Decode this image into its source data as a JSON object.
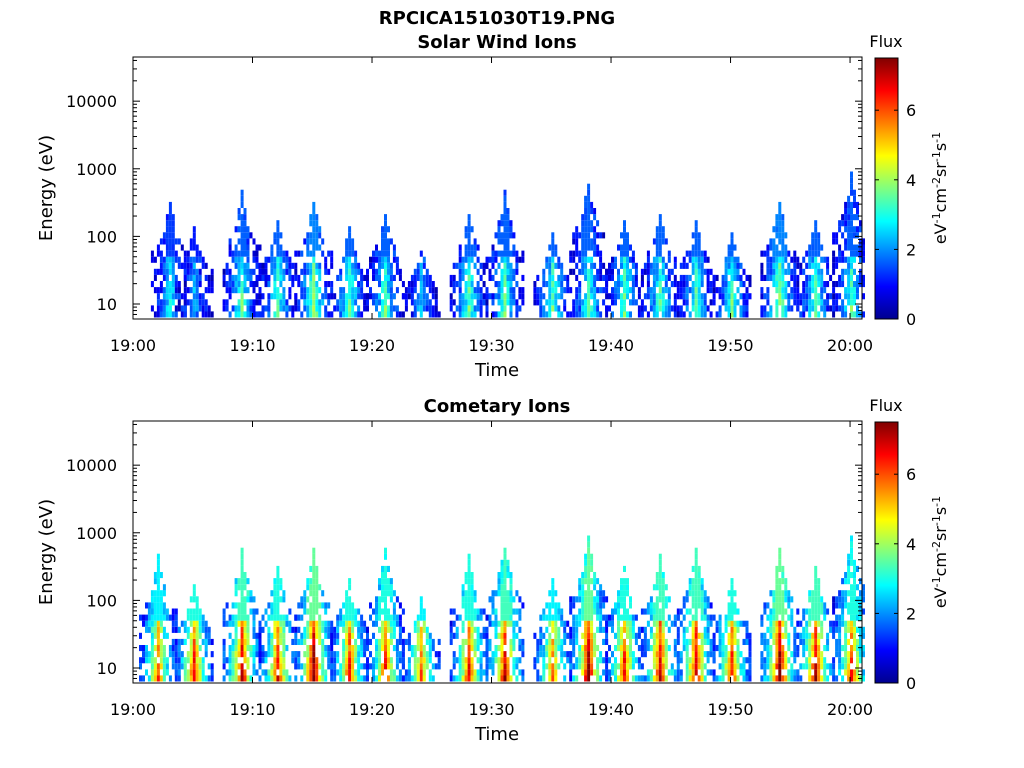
{
  "figure": {
    "title": "RPCICA151030T19.PNG"
  },
  "chart_data": [
    {
      "type": "heatmap",
      "title": "Solar Wind Ions",
      "xlabel": "Time",
      "ylabel": "Energy (eV)",
      "y_scale": "log",
      "ylim": [
        6,
        45000
      ],
      "x_range": [
        "19:00",
        "20:01"
      ],
      "xticks": [
        "19:00",
        "19:10",
        "19:20",
        "19:30",
        "19:40",
        "19:50",
        "20:00"
      ],
      "yticks": [
        "10",
        "100",
        "1000",
        "10000"
      ],
      "colorbar": {
        "title": "Flux",
        "units": "eV-1cm-2sr-1s-1",
        "range": [
          0,
          7.5
        ],
        "ticks": [
          "0",
          "2",
          "4",
          "6"
        ],
        "colormap": "jet"
      },
      "bursts": [
        {
          "t": "19:03",
          "flux": 2.5,
          "emax": 300
        },
        {
          "t": "19:05",
          "flux": 2.0,
          "emax": 120
        },
        {
          "t": "19:09",
          "flux": 3.0,
          "emax": 400
        },
        {
          "t": "19:12",
          "flux": 3.0,
          "emax": 150
        },
        {
          "t": "19:15",
          "flux": 3.5,
          "emax": 300
        },
        {
          "t": "19:18",
          "flux": 3.0,
          "emax": 120
        },
        {
          "t": "19:21",
          "flux": 3.0,
          "emax": 200
        },
        {
          "t": "19:24",
          "flux": 2.0,
          "emax": 60
        },
        {
          "t": "19:28",
          "flux": 3.0,
          "emax": 200
        },
        {
          "t": "19:31",
          "flux": 3.0,
          "emax": 400
        },
        {
          "t": "19:35",
          "flux": 3.0,
          "emax": 100
        },
        {
          "t": "19:38",
          "flux": 3.0,
          "emax": 600
        },
        {
          "t": "19:41",
          "flux": 3.0,
          "emax": 150
        },
        {
          "t": "19:44",
          "flux": 3.0,
          "emax": 200
        },
        {
          "t": "19:47",
          "flux": 3.0,
          "emax": 150
        },
        {
          "t": "19:50",
          "flux": 3.0,
          "emax": 100
        },
        {
          "t": "19:54",
          "flux": 3.5,
          "emax": 300
        },
        {
          "t": "19:57",
          "flux": 3.0,
          "emax": 150
        },
        {
          "t": "20:00",
          "flux": 3.0,
          "emax": 800
        }
      ]
    },
    {
      "type": "heatmap",
      "title": "Cometary Ions",
      "xlabel": "Time",
      "ylabel": "Energy (eV)",
      "y_scale": "log",
      "ylim": [
        6,
        45000
      ],
      "x_range": [
        "19:00",
        "20:01"
      ],
      "xticks": [
        "19:00",
        "19:10",
        "19:20",
        "19:30",
        "19:40",
        "19:50",
        "20:00"
      ],
      "yticks": [
        "10",
        "100",
        "1000",
        "10000"
      ],
      "colorbar": {
        "title": "Flux",
        "units": "eV-1cm-2sr-1s-1",
        "range": [
          0,
          7.5
        ],
        "ticks": [
          "0",
          "2",
          "4",
          "6"
        ],
        "colormap": "jet"
      },
      "bursts": [
        {
          "t": "19:02",
          "flux": 5.0,
          "emax": 400
        },
        {
          "t": "19:05",
          "flux": 5.5,
          "emax": 150
        },
        {
          "t": "19:09",
          "flux": 6.0,
          "emax": 500
        },
        {
          "t": "19:12",
          "flux": 5.5,
          "emax": 300
        },
        {
          "t": "19:15",
          "flux": 6.5,
          "emax": 500
        },
        {
          "t": "19:18",
          "flux": 5.5,
          "emax": 200
        },
        {
          "t": "19:21",
          "flux": 5.5,
          "emax": 500
        },
        {
          "t": "19:24",
          "flux": 5.0,
          "emax": 100
        },
        {
          "t": "19:28",
          "flux": 5.5,
          "emax": 400
        },
        {
          "t": "19:31",
          "flux": 6.0,
          "emax": 600
        },
        {
          "t": "19:35",
          "flux": 5.0,
          "emax": 200
        },
        {
          "t": "19:38",
          "flux": 6.5,
          "emax": 800
        },
        {
          "t": "19:41",
          "flux": 5.5,
          "emax": 300
        },
        {
          "t": "19:44",
          "flux": 6.0,
          "emax": 400
        },
        {
          "t": "19:47",
          "flux": 6.0,
          "emax": 500
        },
        {
          "t": "19:50",
          "flux": 5.5,
          "emax": 200
        },
        {
          "t": "19:54",
          "flux": 6.5,
          "emax": 500
        },
        {
          "t": "19:57",
          "flux": 6.0,
          "emax": 300
        },
        {
          "t": "20:00",
          "flux": 5.5,
          "emax": 800
        }
      ]
    }
  ]
}
